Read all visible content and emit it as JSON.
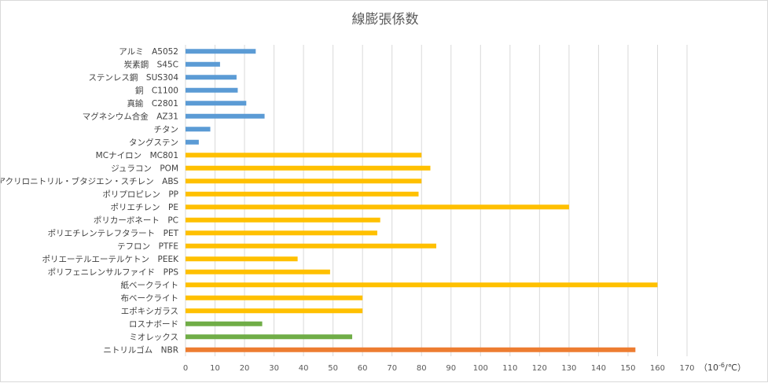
{
  "chart_data": {
    "type": "bar",
    "orientation": "horizontal",
    "title": "線膨張係数",
    "unit_label": "（10-6/℃）",
    "xlim": [
      0,
      170
    ],
    "xticks": [
      0,
      10,
      20,
      30,
      40,
      50,
      60,
      70,
      80,
      90,
      100,
      110,
      120,
      130,
      140,
      150,
      160,
      170
    ],
    "grid": true,
    "legend": "none",
    "categories": [
      "アルミ　A5052",
      "炭素鋼　S45C",
      "ステンレス鋼　SUS304",
      "銅　C1100",
      "真鍮　C2801",
      "マグネシウム合金　AZ31",
      "チタン",
      "タングステン",
      "MCナイロン　MC801",
      "ジュラコン　POM",
      "アクリロニトリル・ブタジエン・スチレン　ABS",
      "ポリプロピレン　PP",
      "ポリエチレン　PE",
      "ポリカーボネート　PC",
      "ポリエチレンテレフタラート　PET",
      "テフロン　PTFE",
      "ポリエーテルエーテルケトン　PEEK",
      "ポリフェニレンサルファイド　PPS",
      "紙ベークライト",
      "布ベークライト",
      "エポキシガラス",
      "ロスナボード",
      "ミオレックス",
      "ニトリルゴム　NBR"
    ],
    "values": [
      23.8,
      11.7,
      17.3,
      17.7,
      20.6,
      26.8,
      8.4,
      4.5,
      80,
      83,
      80,
      79,
      130,
      66,
      65,
      85,
      38,
      49,
      160,
      60,
      60,
      26,
      56.5,
      152.5
    ],
    "groups": [
      "metal",
      "metal",
      "metal",
      "metal",
      "metal",
      "metal",
      "metal",
      "metal",
      "plastic",
      "plastic",
      "plastic",
      "plastic",
      "plastic",
      "plastic",
      "plastic",
      "plastic",
      "plastic",
      "plastic",
      "plastic",
      "plastic",
      "plastic",
      "board",
      "board",
      "rubber"
    ],
    "colors": {
      "metal": "#5b9bd5",
      "plastic": "#ffc000",
      "board": "#70ad47",
      "rubber": "#ed7d31"
    }
  }
}
